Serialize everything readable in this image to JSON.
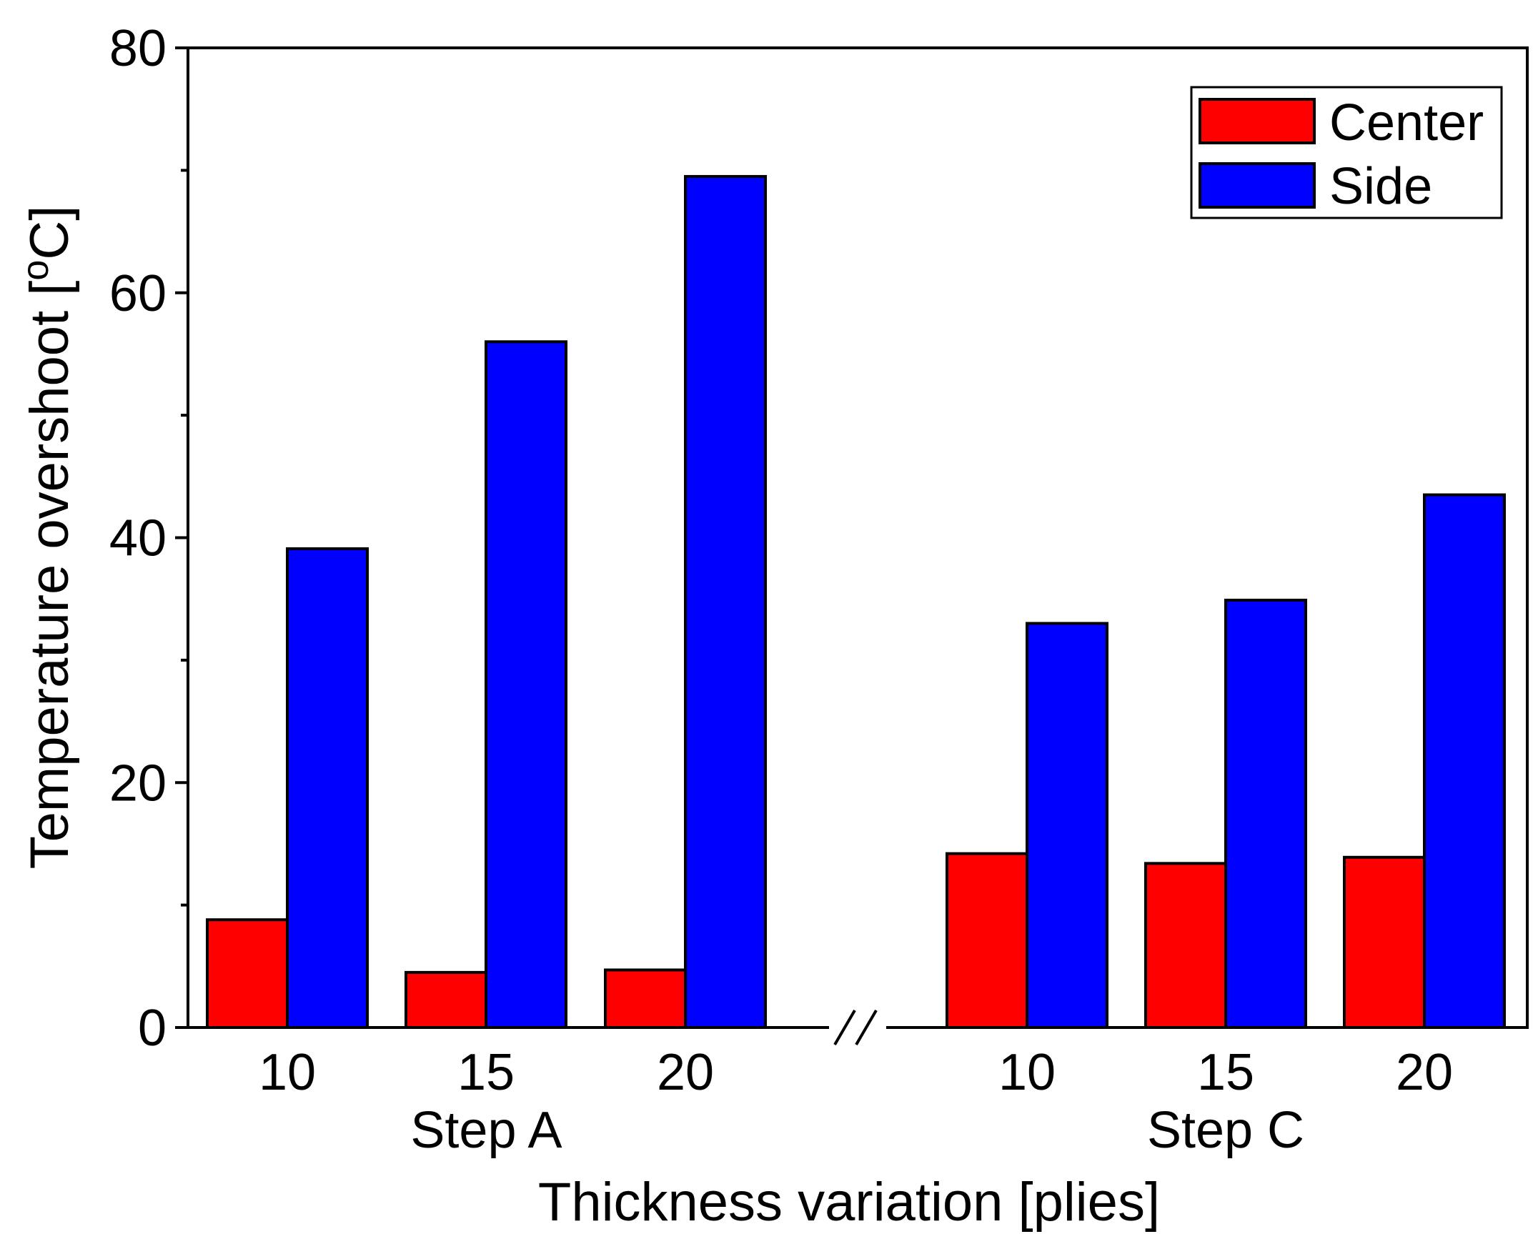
{
  "chart_data": {
    "type": "bar",
    "xlabel": "Thickness variation [plies]",
    "ylabel_main": "Temperature overshoot [",
    "ylabel_sup": "o",
    "ylabel_end": "C]",
    "ylim": [
      0,
      80
    ],
    "yticks": [
      "0",
      "20",
      "40",
      "60",
      "80"
    ],
    "groups": [
      {
        "label": "Step A",
        "categories": [
          "10",
          "15",
          "20"
        ]
      },
      {
        "label": "Step C",
        "categories": [
          "10",
          "15",
          "20"
        ]
      }
    ],
    "series": [
      {
        "name": "Center",
        "color": "#ff0000",
        "values": [
          8.8,
          4.5,
          4.7,
          14.2,
          13.4,
          13.9
        ]
      },
      {
        "name": "Side",
        "color": "#0000ff",
        "values": [
          39.1,
          56.0,
          69.5,
          33.0,
          34.9,
          43.5
        ]
      }
    ],
    "legend_position": "top-right",
    "axis_break": true
  }
}
